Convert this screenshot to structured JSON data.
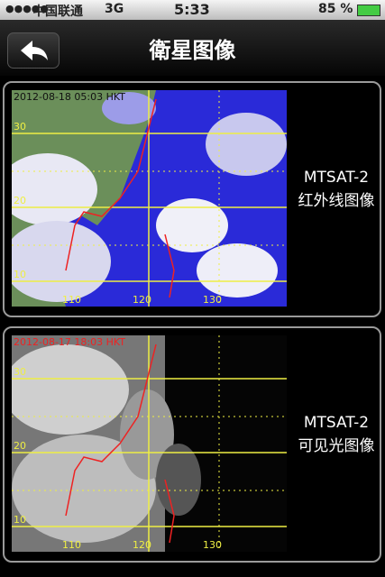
{
  "status_bar": {
    "carrier": "中国联通",
    "network": "3G",
    "time": "5:33",
    "battery": "85 %"
  },
  "nav": {
    "title": "衛星图像"
  },
  "cards": [
    {
      "timestamp": "2012-08-18 05:03 HKT",
      "satellite": "MTSAT-2",
      "caption": "红外线图像",
      "lat_labels": [
        "30",
        "20",
        "10"
      ],
      "lon_labels": [
        "110",
        "120",
        "130"
      ]
    },
    {
      "timestamp": "2012-08-17 18:03 HKT",
      "satellite": "MTSAT-2",
      "caption": "可见光图像",
      "lat_labels": [
        "30",
        "20",
        "10"
      ],
      "lon_labels": [
        "110",
        "120",
        "130"
      ]
    }
  ]
}
